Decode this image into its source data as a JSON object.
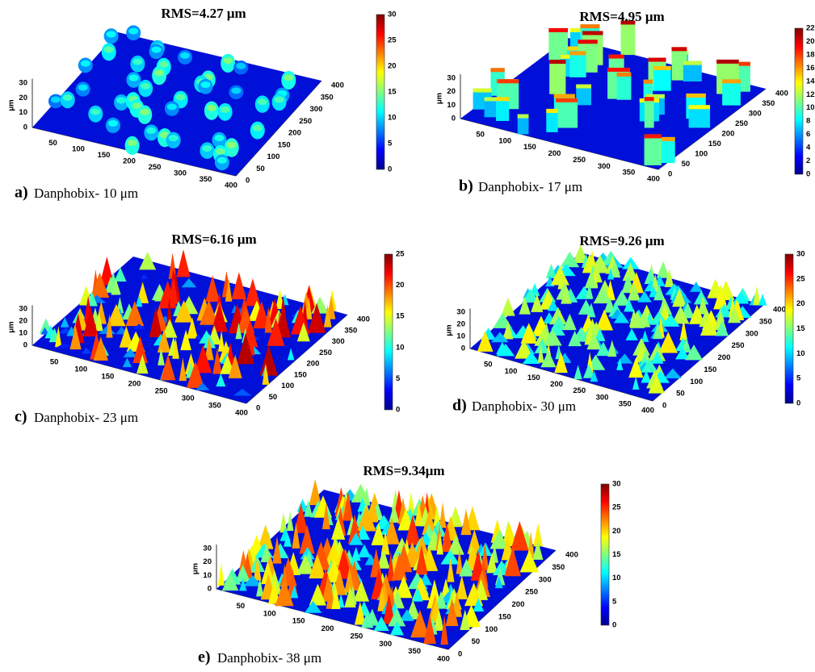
{
  "panels": [
    {
      "label": "a)",
      "caption": "Danphobix- 10 μm",
      "title": "RMS=4.27 μm",
      "zlabel": "μm",
      "zticks": [
        "0",
        "10",
        "20",
        "30"
      ],
      "xticks": [
        "50",
        "100",
        "150",
        "200",
        "250",
        "300",
        "350",
        "400"
      ],
      "yticks": [
        "0",
        "50",
        "100",
        "150",
        "200",
        "250",
        "300",
        "350",
        "400"
      ],
      "colorbar_ticks": [
        "0",
        "5",
        "10",
        "15",
        "20",
        "25",
        "30"
      ]
    },
    {
      "label": "b)",
      "caption": "Danphobix- 17 μm",
      "title": "RMS=4.95 μm",
      "zlabel": "μm",
      "zticks": [
        "0",
        "10",
        "20",
        "30"
      ],
      "xticks": [
        "50",
        "100",
        "150",
        "200",
        "250",
        "300",
        "350",
        "400"
      ],
      "yticks": [
        "0",
        "50",
        "100",
        "150",
        "200",
        "250",
        "300",
        "350",
        "400"
      ],
      "colorbar_ticks": [
        "0",
        "2",
        "4",
        "6",
        "8",
        "10",
        "12",
        "14",
        "16",
        "18",
        "20",
        "22"
      ]
    },
    {
      "label": "c)",
      "caption": "Danphobix- 23 μm",
      "title": "RMS=6.16 μm",
      "zlabel": "μm",
      "zticks": [
        "0",
        "10",
        "20",
        "30"
      ],
      "xticks": [
        "50",
        "100",
        "150",
        "200",
        "250",
        "300",
        "350",
        "400"
      ],
      "yticks": [
        "0",
        "50",
        "100",
        "150",
        "200",
        "250",
        "300",
        "350",
        "400"
      ],
      "colorbar_ticks": [
        "0",
        "5",
        "10",
        "15",
        "20",
        "25"
      ]
    },
    {
      "label": "d)",
      "caption": "Danphobix- 30 μm",
      "title": "RMS=9.26 μm",
      "zlabel": "μm",
      "zticks": [
        "0",
        "10",
        "20",
        "30"
      ],
      "xticks": [
        "50",
        "100",
        "150",
        "200",
        "250",
        "300",
        "350",
        "400"
      ],
      "yticks": [
        "0",
        "50",
        "100",
        "150",
        "200",
        "250",
        "300",
        "350",
        "400"
      ],
      "colorbar_ticks": [
        "0",
        "5",
        "10",
        "15",
        "20",
        "25",
        "30"
      ]
    },
    {
      "label": "e)",
      "caption": "Danphobix- 38 μm",
      "title": "RMS=9.34μm",
      "zlabel": "μm",
      "zticks": [
        "0",
        "10",
        "20",
        "30"
      ],
      "xticks": [
        "50",
        "100",
        "150",
        "200",
        "250",
        "300",
        "350",
        "400"
      ],
      "yticks": [
        "0",
        "50",
        "100",
        "150",
        "200",
        "250",
        "300",
        "350",
        "400"
      ],
      "colorbar_ticks": [
        "0",
        "5",
        "10",
        "15",
        "20",
        "25",
        "30"
      ]
    }
  ]
}
